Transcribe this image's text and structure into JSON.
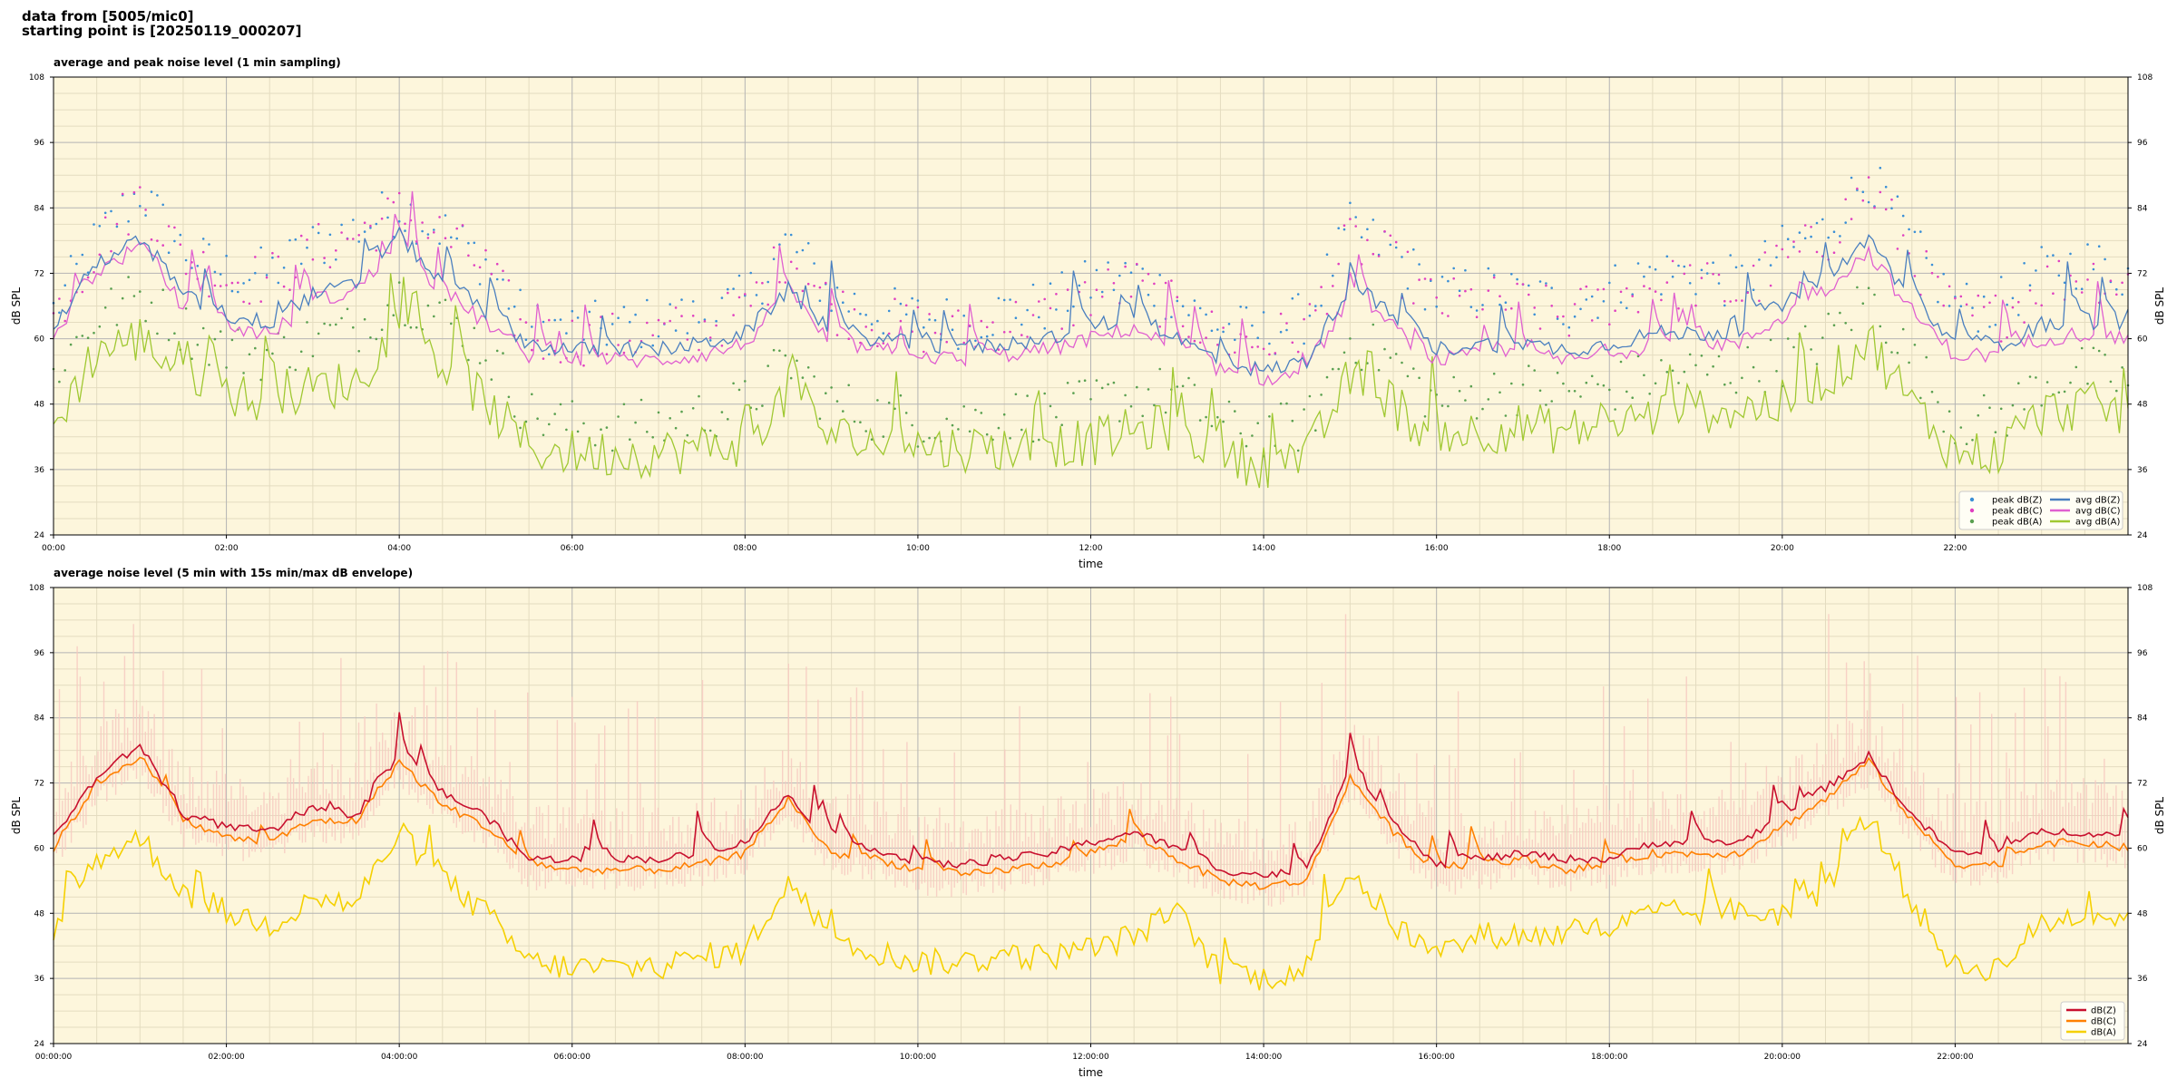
{
  "header": {
    "line1": "data from [5005/mic0]",
    "line2": "starting point is [20250119_000207]"
  },
  "colors": {
    "plot_bg": "#fdf6dc",
    "grid_major": "#b4b4b4",
    "grid_minor": "#e4dcc0",
    "z_top": "#4a7fbf",
    "z_peak": "#3a8fd6",
    "c_top": "#e060d0",
    "c_peak": "#e040c0",
    "a_top": "#a0c832",
    "a_peak": "#5aa050",
    "z_bot": "#c8102e",
    "c_bot": "#ff8000",
    "a_bot": "#f5d000",
    "env_bot": "#f7c8c0"
  },
  "chart_data": [
    {
      "type": "line",
      "title": "average and peak noise level (1 min sampling)",
      "xlabel": "time",
      "ylabel": "dB SPL",
      "ylabel_right": "dB SPL",
      "ylim": [
        24,
        108
      ],
      "yticks": [
        "24",
        "36",
        "48",
        "60",
        "72",
        "84",
        "96",
        "108"
      ],
      "xlim_hours": [
        0,
        24
      ],
      "xticks": [
        "00:00",
        "02:00",
        "04:00",
        "06:00",
        "08:00",
        "10:00",
        "12:00",
        "14:00",
        "16:00",
        "18:00",
        "20:00",
        "22:00"
      ],
      "grid": true,
      "legend_position": "bottom-right",
      "legend": [
        "peak dB(Z)",
        "peak dB(C)",
        "peak dB(A)",
        "avg dB(Z)",
        "avg dB(C)",
        "avg dB(A)"
      ],
      "x": [
        0,
        0.5,
        1,
        1.5,
        2,
        2.5,
        3,
        3.5,
        4,
        4.5,
        5,
        5.5,
        6,
        6.5,
        7,
        7.5,
        8,
        8.5,
        9,
        9.5,
        10,
        10.5,
        11,
        11.5,
        12,
        12.5,
        13,
        13.5,
        14,
        14.5,
        15,
        15.5,
        16,
        16.5,
        17,
        17.5,
        18,
        18.5,
        19,
        19.5,
        20,
        20.5,
        21,
        21.5,
        22,
        22.5,
        23,
        23.5,
        24
      ],
      "series": [
        {
          "name": "avg dB(Z)",
          "values": [
            62,
            74,
            78,
            68,
            64,
            63,
            68,
            70,
            79,
            70,
            65,
            59,
            58,
            58,
            58,
            59,
            61,
            69,
            61,
            60,
            59,
            58,
            59,
            60,
            62,
            64,
            60,
            56,
            54,
            56,
            70,
            64,
            58,
            59,
            59,
            58,
            59,
            61,
            61,
            61,
            66,
            71,
            78,
            67,
            59,
            59,
            62,
            63,
            62
          ]
        },
        {
          "name": "avg dB(C)",
          "values": [
            60,
            72,
            77,
            66,
            62,
            61,
            66,
            69,
            77,
            68,
            63,
            57,
            56,
            56,
            56,
            57,
            59,
            68,
            59,
            58,
            57,
            56,
            57,
            58,
            60,
            62,
            58,
            54,
            52,
            54,
            68,
            62,
            56,
            57,
            57,
            56,
            57,
            59,
            59,
            59,
            64,
            69,
            76,
            65,
            57,
            57,
            60,
            61,
            60
          ]
        },
        {
          "name": "avg dB(A)",
          "values": [
            44,
            58,
            60,
            54,
            50,
            48,
            51,
            52,
            62,
            55,
            48,
            40,
            39,
            39,
            39,
            40,
            41,
            50,
            42,
            41,
            40,
            40,
            40,
            40,
            41,
            43,
            44,
            38,
            37,
            38,
            53,
            48,
            41,
            43,
            44,
            43,
            44,
            46,
            47,
            47,
            48,
            52,
            60,
            48,
            39,
            39,
            46,
            48,
            46
          ]
        },
        {
          "name": "peak dB(Z)",
          "values": [
            63,
            76,
            85,
            74,
            70,
            70,
            75,
            78,
            82,
            78,
            72,
            60,
            60,
            60,
            61,
            62,
            65,
            76,
            66,
            63,
            62,
            61,
            63,
            64,
            68,
            70,
            65,
            60,
            59,
            62,
            78,
            74,
            66,
            67,
            66,
            64,
            67,
            70,
            70,
            68,
            74,
            78,
            88,
            75,
            64,
            64,
            70,
            72,
            70
          ]
        },
        {
          "name": "peak dB(C)",
          "values": [
            62,
            75,
            84,
            73,
            69,
            69,
            74,
            77,
            81,
            77,
            71,
            58,
            58,
            58,
            59,
            60,
            63,
            74,
            64,
            61,
            60,
            59,
            61,
            62,
            66,
            68,
            63,
            58,
            57,
            60,
            76,
            72,
            64,
            65,
            64,
            62,
            65,
            68,
            68,
            66,
            72,
            76,
            86,
            73,
            62,
            62,
            68,
            70,
            68
          ]
        },
        {
          "name": "peak dB(A)",
          "values": [
            52,
            62,
            66,
            60,
            56,
            55,
            58,
            60,
            66,
            62,
            56,
            44,
            42,
            42,
            42,
            44,
            46,
            54,
            46,
            44,
            43,
            43,
            44,
            44,
            46,
            48,
            48,
            42,
            41,
            42,
            58,
            54,
            46,
            48,
            49,
            48,
            49,
            51,
            52,
            52,
            54,
            58,
            66,
            54,
            43,
            43,
            50,
            52,
            50
          ]
        }
      ]
    },
    {
      "type": "line",
      "title": "average noise level (5 min with 15s min/max dB envelope)",
      "xlabel": "time",
      "ylabel": "dB SPL",
      "ylabel_right": "dB SPL",
      "ylim": [
        24,
        108
      ],
      "yticks": [
        "24",
        "36",
        "48",
        "60",
        "72",
        "84",
        "96",
        "108"
      ],
      "xlim_hours": [
        0,
        24
      ],
      "xticks": [
        "00:00:00",
        "02:00:00",
        "04:00:00",
        "06:00:00",
        "08:00:00",
        "10:00:00",
        "12:00:00",
        "14:00:00",
        "16:00:00",
        "18:00:00",
        "20:00:00",
        "22:00:00"
      ],
      "grid": true,
      "legend_position": "bottom-right",
      "legend": [
        "dB(Z)",
        "dB(C)",
        "dB(A)"
      ],
      "x": [
        0,
        0.5,
        1,
        1.5,
        2,
        2.5,
        3,
        3.5,
        4,
        4.5,
        5,
        5.5,
        6,
        6.5,
        7,
        7.5,
        8,
        8.5,
        9,
        9.5,
        10,
        10.5,
        11,
        11.5,
        12,
        12.5,
        13,
        13.5,
        14,
        14.5,
        15,
        15.5,
        16,
        16.5,
        17,
        17.5,
        18,
        18.5,
        19,
        19.5,
        20,
        20.5,
        21,
        21.5,
        22,
        22.5,
        23,
        23.5,
        24
      ],
      "series": [
        {
          "name": "dB(Z)",
          "values": [
            62,
            73,
            79,
            66,
            64,
            63,
            67,
            66,
            77,
            70,
            66,
            58,
            58,
            58,
            58,
            59,
            61,
            70,
            61,
            60,
            57,
            57,
            58,
            59,
            61,
            63,
            60,
            56,
            55,
            56,
            75,
            65,
            57,
            58,
            59,
            58,
            58,
            61,
            61,
            61,
            66,
            71,
            77,
            66,
            59,
            59,
            63,
            63,
            62
          ]
        },
        {
          "name": "dB(C)",
          "values": [
            60,
            72,
            77,
            65,
            62,
            61,
            65,
            65,
            76,
            68,
            64,
            57,
            56,
            56,
            56,
            57,
            59,
            69,
            59,
            58,
            56,
            55,
            56,
            57,
            59,
            62,
            58,
            54,
            53,
            54,
            73,
            63,
            56,
            57,
            58,
            56,
            57,
            59,
            59,
            59,
            64,
            69,
            76,
            65,
            57,
            57,
            61,
            61,
            60
          ]
        },
        {
          "name": "dB(A)",
          "values": [
            44,
            58,
            62,
            52,
            48,
            46,
            50,
            50,
            63,
            54,
            48,
            39,
            38,
            38,
            38,
            40,
            41,
            54,
            43,
            41,
            39,
            39,
            40,
            40,
            41,
            44,
            48,
            37,
            36,
            38,
            56,
            46,
            40,
            44,
            44,
            44,
            45,
            48,
            48,
            48,
            48,
            52,
            66,
            50,
            38,
            38,
            46,
            48,
            47
          ]
        }
      ]
    }
  ]
}
